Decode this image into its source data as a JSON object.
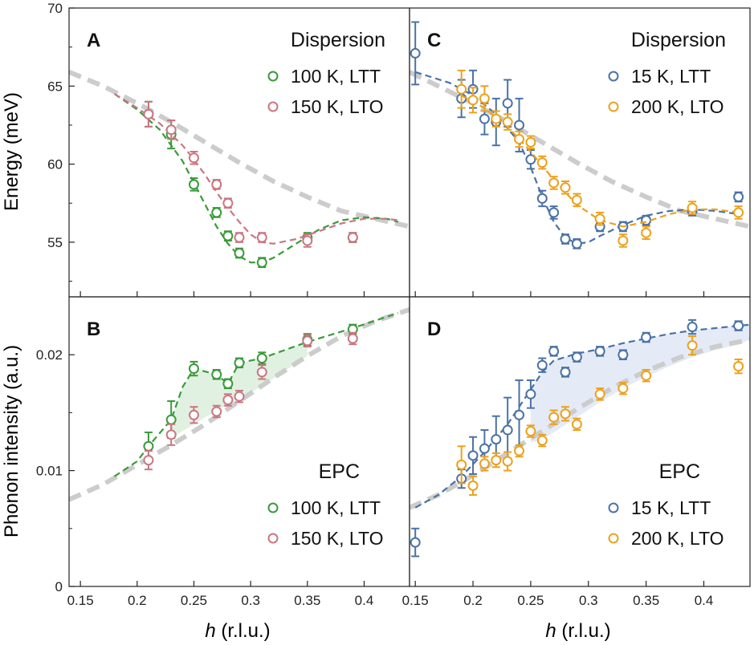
{
  "colors": {
    "green": "#3a9a3a",
    "pink": "#c97782",
    "blue": "#4a72a6",
    "orange": "#eca11c",
    "gray": "#cccccc",
    "fill_green": "#dcefdc",
    "fill_blue": "#e0e8f4"
  },
  "figure": {
    "ylabel_top": "Energy (meV)",
    "ylabel_bottom": "Phonon intensity (a.u.)",
    "xlabel_italic": "h",
    "xlabel_rest": " (r.l.u.)"
  },
  "chart_data": [
    {
      "panel": "A",
      "type": "scatter",
      "title": "Dispersion",
      "xlim": [
        0.14,
        0.44
      ],
      "ylim": [
        51.5,
        70
      ],
      "xticks": [
        "0.15",
        "0.2",
        "0.25",
        "0.3",
        "0.35",
        "0.4"
      ],
      "yticks": [
        "55",
        "60",
        "65",
        "70"
      ],
      "legend_placement": "top-right",
      "gray_line": {
        "x": [
          0.14,
          0.17,
          0.2,
          0.23,
          0.26,
          0.29,
          0.32,
          0.35,
          0.38,
          0.41,
          0.44
        ],
        "y": [
          65.9,
          65.0,
          63.9,
          62.7,
          61.4,
          60.1,
          58.9,
          57.9,
          57.0,
          56.5,
          56.0
        ]
      },
      "series": [
        {
          "name": "100 K, LTT",
          "color": "green",
          "x": [
            0.21,
            0.23,
            0.25,
            0.27,
            0.28,
            0.29,
            0.31,
            0.35,
            0.39
          ],
          "y": [
            63.2,
            61.9,
            58.7,
            56.9,
            55.4,
            54.3,
            53.7,
            55.3,
            55.3
          ],
          "err": [
            0.8,
            0.9,
            0.4,
            0.3,
            0.3,
            0.3,
            0.3,
            0.3,
            0.3
          ],
          "fit": {
            "x": [
              0.18,
              0.2,
              0.22,
              0.24,
              0.25,
              0.26,
              0.27,
              0.28,
              0.29,
              0.3,
              0.31,
              0.32,
              0.34,
              0.36,
              0.38,
              0.4,
              0.42,
              0.43
            ],
            "y": [
              64.5,
              63.5,
              62.2,
              60.2,
              58.8,
              57.4,
              56.0,
              54.9,
              54.1,
              53.7,
              53.7,
              54.0,
              54.9,
              55.8,
              56.4,
              56.6,
              56.5,
              56.3
            ]
          }
        },
        {
          "name": "150 K, LTO",
          "color": "pink",
          "x": [
            0.21,
            0.23,
            0.25,
            0.27,
            0.28,
            0.29,
            0.31,
            0.35,
            0.39
          ],
          "y": [
            63.2,
            62.2,
            60.4,
            58.7,
            57.5,
            55.3,
            55.3,
            55.1,
            55.3
          ],
          "err": [
            0.8,
            0.6,
            0.4,
            0.3,
            0.3,
            0.3,
            0.3,
            0.4,
            0.3
          ],
          "fit": {
            "x": [
              0.18,
              0.2,
              0.22,
              0.24,
              0.25,
              0.26,
              0.27,
              0.28,
              0.29,
              0.3,
              0.31,
              0.32,
              0.34,
              0.36,
              0.38,
              0.4,
              0.42,
              0.43
            ],
            "y": [
              64.5,
              63.6,
              62.6,
              61.2,
              60.3,
              59.3,
              58.2,
              57.2,
              56.3,
              55.5,
              55.0,
              54.9,
              55.2,
              55.7,
              56.2,
              56.5,
              56.5,
              56.4
            ]
          }
        }
      ]
    },
    {
      "panel": "C",
      "type": "scatter",
      "title": "Dispersion",
      "xlim": [
        0.145,
        0.44
      ],
      "ylim": [
        51.5,
        70
      ],
      "xticks": [
        "0.15",
        "0.2",
        "0.25",
        "0.3",
        "0.35",
        "0.4"
      ],
      "yticks": [],
      "legend_placement": "top-right",
      "gray_line": {
        "x": [
          0.145,
          0.17,
          0.2,
          0.23,
          0.26,
          0.29,
          0.32,
          0.35,
          0.38,
          0.41,
          0.44
        ],
        "y": [
          65.9,
          65.0,
          63.9,
          62.7,
          61.4,
          60.1,
          58.9,
          57.9,
          57.0,
          56.5,
          56.0
        ]
      },
      "series": [
        {
          "name": "15 K, LTT",
          "color": "blue",
          "x": [
            0.15,
            0.19,
            0.2,
            0.21,
            0.22,
            0.23,
            0.24,
            0.25,
            0.26,
            0.27,
            0.28,
            0.29,
            0.31,
            0.33,
            0.35,
            0.39,
            0.43
          ],
          "y": [
            67.1,
            64.2,
            64.8,
            62.9,
            62.7,
            63.9,
            62.5,
            60.3,
            57.8,
            56.9,
            55.2,
            54.9,
            56.0,
            56.0,
            56.4,
            57.0,
            57.9
          ],
          "err": [
            2.0,
            1.2,
            1.2,
            1.0,
            1.5,
            1.5,
            1.7,
            0.6,
            0.5,
            0.4,
            0.3,
            0.3,
            0.3,
            0.3,
            0.3,
            0.3,
            0.3
          ],
          "fit": {
            "x": [
              0.15,
              0.18,
              0.2,
              0.22,
              0.24,
              0.25,
              0.26,
              0.27,
              0.28,
              0.29,
              0.3,
              0.31,
              0.33,
              0.35,
              0.37,
              0.39,
              0.41,
              0.43
            ],
            "y": [
              65.9,
              65.2,
              64.4,
              63.2,
              61.4,
              59.8,
              57.9,
              56.3,
              55.3,
              54.9,
              55.0,
              55.4,
              56.1,
              56.7,
              57.0,
              57.1,
              57.0,
              56.8
            ]
          }
        },
        {
          "name": "200 K, LTO",
          "color": "orange",
          "x": [
            0.19,
            0.2,
            0.21,
            0.22,
            0.23,
            0.24,
            0.25,
            0.26,
            0.27,
            0.28,
            0.29,
            0.31,
            0.33,
            0.35,
            0.39,
            0.43
          ],
          "y": [
            64.8,
            64.1,
            64.2,
            62.9,
            62.7,
            61.6,
            61.4,
            60.1,
            58.8,
            58.5,
            57.7,
            56.5,
            55.1,
            55.6,
            57.2,
            56.9
          ],
          "err": [
            1.2,
            0.8,
            0.8,
            0.5,
            0.5,
            0.5,
            0.4,
            0.4,
            0.4,
            0.4,
            0.4,
            0.4,
            0.4,
            0.4,
            0.4,
            0.4
          ],
          "fit": {
            "x": [
              0.19,
              0.21,
              0.23,
              0.25,
              0.27,
              0.29,
              0.31,
              0.33,
              0.35,
              0.37,
              0.39,
              0.41,
              0.43
            ],
            "y": [
              64.4,
              63.6,
              62.4,
              60.8,
              59.0,
              57.4,
              56.4,
              56.0,
              56.3,
              56.8,
              57.1,
              57.1,
              56.9
            ]
          }
        }
      ]
    },
    {
      "panel": "B",
      "type": "scatter",
      "title": "EPC",
      "xlim": [
        0.14,
        0.44
      ],
      "ylim": [
        0,
        0.025
      ],
      "xticks": [
        "0.15",
        "0.2",
        "0.25",
        "0.3",
        "0.35",
        "0.4"
      ],
      "yticks": [
        "0",
        "0.01",
        "0.02"
      ],
      "legend_placement": "bottom-right",
      "gray_line": {
        "x": [
          0.14,
          0.17,
          0.2,
          0.23,
          0.26,
          0.29,
          0.32,
          0.35,
          0.38,
          0.41,
          0.44
        ],
        "y": [
          0.0075,
          0.0088,
          0.0105,
          0.0122,
          0.014,
          0.016,
          0.018,
          0.0199,
          0.0216,
          0.0229,
          0.0239
        ]
      },
      "series": [
        {
          "name": "100 K, LTT",
          "color": "green",
          "x": [
            0.21,
            0.23,
            0.25,
            0.27,
            0.28,
            0.29,
            0.31,
            0.35,
            0.39
          ],
          "y": [
            0.0121,
            0.0144,
            0.0188,
            0.0183,
            0.0175,
            0.0193,
            0.0197,
            0.0213,
            0.0222
          ],
          "err": [
            0.0012,
            0.0016,
            0.0006,
            0.0004,
            0.0004,
            0.0004,
            0.0005,
            0.0005,
            0.0004
          ],
          "fit": {
            "x": [
              0.18,
              0.2,
              0.21,
              0.23,
              0.24,
              0.25,
              0.27,
              0.28,
              0.29,
              0.31,
              0.35,
              0.39,
              0.43
            ],
            "y": [
              0.0095,
              0.0108,
              0.0121,
              0.0144,
              0.0172,
              0.0188,
              0.0183,
              0.0175,
              0.0193,
              0.0197,
              0.0211,
              0.0223,
              0.0236
            ]
          }
        },
        {
          "name": "150 K, LTO",
          "color": "pink",
          "x": [
            0.21,
            0.23,
            0.25,
            0.27,
            0.28,
            0.29,
            0.31,
            0.35,
            0.39
          ],
          "y": [
            0.0109,
            0.0131,
            0.0148,
            0.0151,
            0.0161,
            0.0164,
            0.0185,
            0.0212,
            0.0214
          ],
          "err": [
            0.0008,
            0.0009,
            0.0007,
            0.0005,
            0.0005,
            0.0005,
            0.0006,
            0.0005,
            0.0005
          ],
          "fit": null
        }
      ],
      "shade": {
        "color": "fill_green",
        "x": [
          0.23,
          0.24,
          0.25,
          0.27,
          0.28,
          0.29,
          0.31,
          0.35
        ],
        "upper": [
          0.0144,
          0.0172,
          0.0188,
          0.0183,
          0.0175,
          0.0193,
          0.0197,
          0.0211
        ],
        "lower": [
          0.0128,
          0.0134,
          0.014,
          0.0152,
          0.0157,
          0.0162,
          0.0173,
          0.0199
        ]
      }
    },
    {
      "panel": "D",
      "type": "scatter",
      "title": "EPC",
      "xlim": [
        0.145,
        0.44
      ],
      "ylim": [
        0,
        0.025
      ],
      "xticks": [
        "0.15",
        "0.2",
        "0.25",
        "0.3",
        "0.35",
        "0.4"
      ],
      "yticks": [],
      "legend_placement": "bottom-right",
      "gray_line": {
        "x": [
          0.145,
          0.17,
          0.2,
          0.23,
          0.26,
          0.29,
          0.32,
          0.35,
          0.38,
          0.41,
          0.44
        ],
        "y": [
          0.0068,
          0.0079,
          0.0096,
          0.0115,
          0.0134,
          0.0153,
          0.0171,
          0.0186,
          0.0198,
          0.0207,
          0.0213
        ]
      },
      "series": [
        {
          "name": "15 K, LTT",
          "color": "blue",
          "x": [
            0.15,
            0.19,
            0.2,
            0.21,
            0.22,
            0.23,
            0.24,
            0.25,
            0.26,
            0.27,
            0.28,
            0.29,
            0.31,
            0.33,
            0.35,
            0.39,
            0.43
          ],
          "y": [
            0.0038,
            0.0093,
            0.0113,
            0.0119,
            0.0127,
            0.0135,
            0.0148,
            0.0166,
            0.0191,
            0.0203,
            0.0185,
            0.0198,
            0.0203,
            0.02,
            0.0215,
            0.0224,
            0.0225
          ],
          "err": [
            0.0012,
            0.0008,
            0.0016,
            0.0016,
            0.002,
            0.0028,
            0.003,
            0.0012,
            0.0006,
            0.0004,
            0.0004,
            0.0004,
            0.0004,
            0.0004,
            0.0004,
            0.0006,
            0.0004
          ],
          "fit": {
            "x": [
              0.15,
              0.17,
              0.19,
              0.21,
              0.23,
              0.25,
              0.26,
              0.27,
              0.29,
              0.31,
              0.33,
              0.35,
              0.37,
              0.39,
              0.41,
              0.43,
              0.44
            ],
            "y": [
              0.0068,
              0.0079,
              0.0095,
              0.0116,
              0.014,
              0.017,
              0.0185,
              0.0195,
              0.0201,
              0.0205,
              0.021,
              0.0214,
              0.0218,
              0.0221,
              0.0223,
              0.0225,
              0.0226
            ]
          }
        },
        {
          "name": "200 K, LTO",
          "color": "orange",
          "x": [
            0.19,
            0.2,
            0.21,
            0.22,
            0.23,
            0.24,
            0.25,
            0.26,
            0.27,
            0.28,
            0.29,
            0.31,
            0.33,
            0.35,
            0.39,
            0.43
          ],
          "y": [
            0.0105,
            0.0087,
            0.0106,
            0.0109,
            0.0108,
            0.0117,
            0.0134,
            0.0126,
            0.0146,
            0.0149,
            0.014,
            0.0166,
            0.0171,
            0.0182,
            0.0208,
            0.019
          ],
          "err": [
            0.0016,
            0.0008,
            0.0006,
            0.0006,
            0.0008,
            0.0005,
            0.0005,
            0.0005,
            0.0006,
            0.0006,
            0.0005,
            0.0005,
            0.0005,
            0.0005,
            0.0008,
            0.0006
          ],
          "fit": null
        }
      ],
      "shade": {
        "color": "fill_blue",
        "x": [
          0.25,
          0.26,
          0.27,
          0.29,
          0.31,
          0.33,
          0.35,
          0.37,
          0.39,
          0.41,
          0.43,
          0.44
        ],
        "upper": [
          0.017,
          0.0185,
          0.0195,
          0.0201,
          0.0205,
          0.021,
          0.0214,
          0.0218,
          0.0221,
          0.0223,
          0.0225,
          0.0226
        ],
        "lower": [
          0.0124,
          0.0127,
          0.0133,
          0.0146,
          0.0159,
          0.0171,
          0.0181,
          0.019,
          0.0198,
          0.0204,
          0.0209,
          0.0213
        ]
      }
    }
  ]
}
